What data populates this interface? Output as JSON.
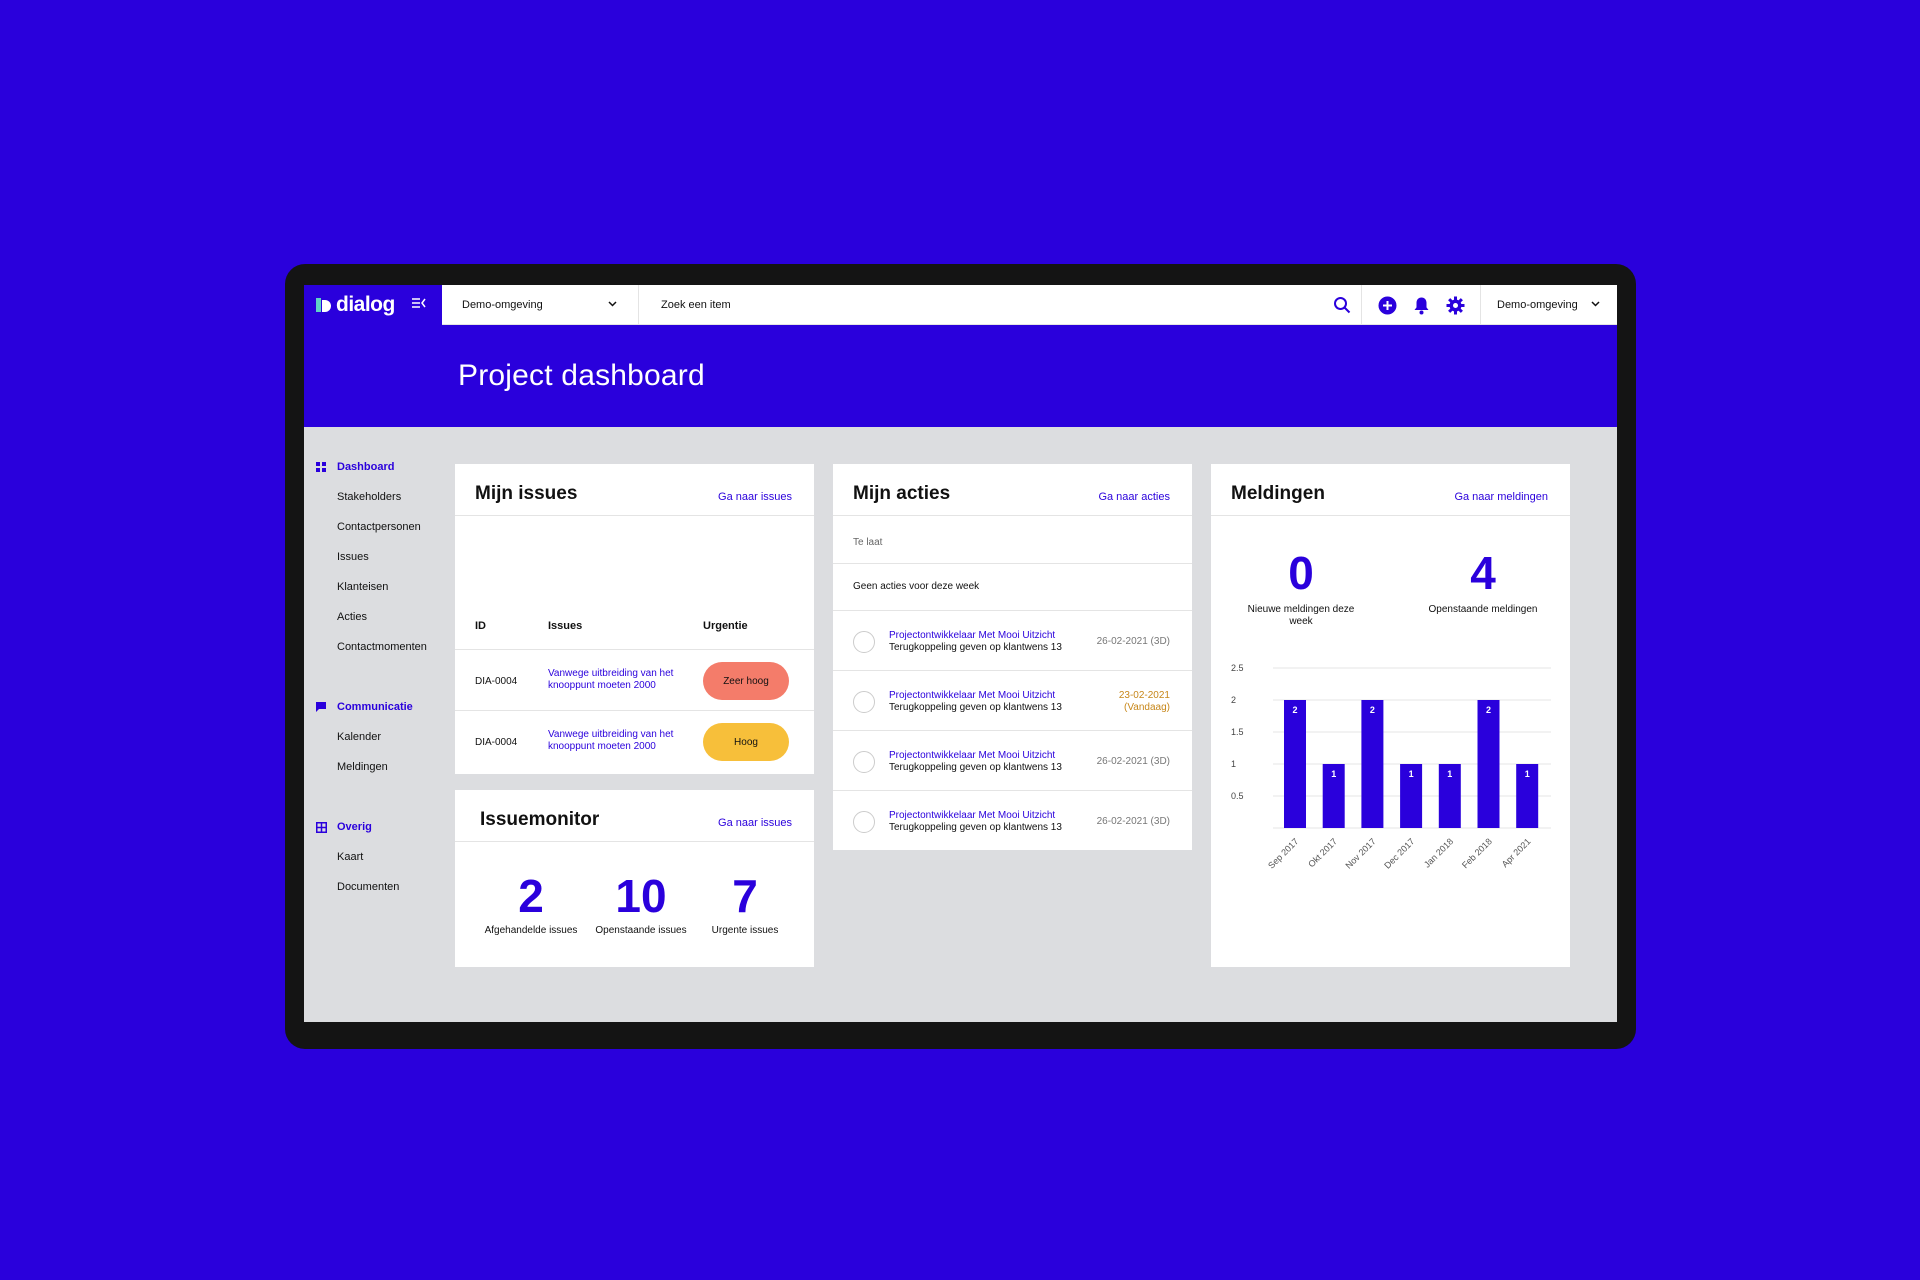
{
  "app": {
    "logo": "dialog"
  },
  "topbar": {
    "environment": "Demo-omgeving",
    "search_placeholder": "Zoek een item",
    "user_menu": "Demo-omgeving"
  },
  "hero": {
    "title": "Project dashboard"
  },
  "sidebar": {
    "sections": [
      {
        "label": "Dashboard",
        "icon": "grid-icon"
      },
      {
        "label": "Communicatie",
        "icon": "chat-icon"
      },
      {
        "label": "Overig",
        "icon": "table-icon"
      }
    ],
    "items": [
      "Stakeholders",
      "Contactpersonen",
      "Issues",
      "Klanteisen",
      "Acties",
      "Contactmomenten",
      "Kalender",
      "Meldingen",
      "Kaart",
      "Documenten"
    ]
  },
  "issues": {
    "title": "Mijn issues",
    "link": "Ga naar issues",
    "headers": [
      "ID",
      "Issues",
      "Urgentie"
    ],
    "rows": [
      {
        "id": "DIA-0004",
        "text": "Vanwege uitbreiding van het knooppunt moeten 2000",
        "urgency": "Zeer hoog",
        "color": "#f47c6a"
      },
      {
        "id": "DIA-0004",
        "text": "Vanwege uitbreiding van het knooppunt moeten 2000",
        "urgency": "Hoog",
        "color": "#f7bf3a"
      }
    ]
  },
  "monitor": {
    "title": "Issuemonitor",
    "link": "Ga naar issues",
    "stats": [
      {
        "value": "2",
        "label": "Afgehandelde issues"
      },
      {
        "value": "10",
        "label": "Openstaande issues"
      },
      {
        "value": "7",
        "label": "Urgente issues"
      }
    ]
  },
  "acties": {
    "title": "Mijn acties",
    "link": "Ga naar acties",
    "late_label": "Te laat",
    "week_label": "Geen acties voor deze week",
    "rows": [
      {
        "title": "Projectontwikkelaar Met Mooi Uitzicht",
        "desc": "Terugkoppeling geven op klantwens 13",
        "date": "26-02-2021 (3D)",
        "date2": ""
      },
      {
        "title": "Projectontwikkelaar Met Mooi Uitzicht",
        "desc": "Terugkoppeling geven op klantwens 13",
        "date": "23-02-2021",
        "date2": "(Vandaag)"
      },
      {
        "title": "Projectontwikkelaar Met Mooi Uitzicht",
        "desc": "Terugkoppeling geven op klantwens 13",
        "date": "26-02-2021 (3D)",
        "date2": ""
      },
      {
        "title": "Projectontwikkelaar Met Mooi Uitzicht",
        "desc": "Terugkoppeling geven op klantwens 13",
        "date": "26-02-2021 (3D)",
        "date2": ""
      }
    ]
  },
  "meldingen": {
    "title": "Meldingen",
    "link": "Ga naar meldingen",
    "stats": [
      {
        "value": "0",
        "label": "Nieuwe meldingen deze week"
      },
      {
        "value": "4",
        "label": "Openstaande meldingen"
      }
    ]
  },
  "chart_data": {
    "type": "bar",
    "categories": [
      "Sep 2017",
      "Okt 2017",
      "Nov 2017",
      "Dec 2017",
      "Jan 2018",
      "Feb 2018",
      "Apr 2021"
    ],
    "values": [
      2,
      1,
      2,
      1,
      1,
      2,
      1
    ],
    "yticks": [
      "0.5",
      "1",
      "1.5",
      "2",
      "2.5"
    ],
    "ylim": [
      0,
      2.5
    ],
    "color": "#2a00dc"
  },
  "colors": {
    "brand": "#2a00dc",
    "accent": "#5fd3c6"
  }
}
